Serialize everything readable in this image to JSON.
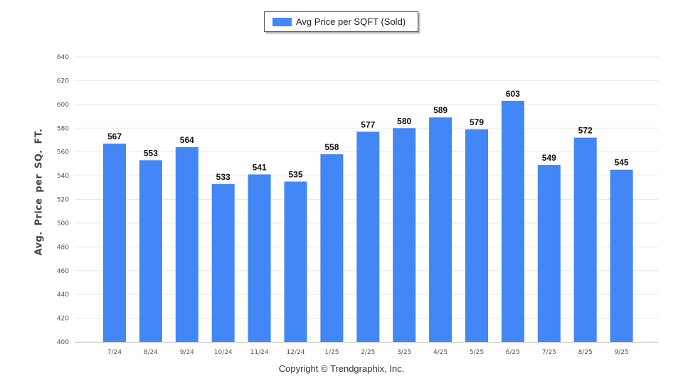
{
  "chart_data": {
    "type": "bar",
    "title": "",
    "xlabel": "",
    "ylabel": "Avg. Price per SQ. FT.",
    "legend": {
      "position": "top-center",
      "entries": [
        "Avg Price per SQFT (Sold)"
      ]
    },
    "categories": [
      "7/24",
      "8/24",
      "9/24",
      "10/24",
      "11/24",
      "12/24",
      "1/25",
      "2/25",
      "3/25",
      "4/25",
      "5/25",
      "6/25",
      "7/25",
      "8/25",
      "9/25"
    ],
    "series": [
      {
        "name": "Avg Price per SQFT (Sold)",
        "color": "#4287f5",
        "values": [
          567,
          553,
          564,
          533,
          541,
          535,
          558,
          577,
          580,
          589,
          579,
          603,
          549,
          572,
          545
        ]
      }
    ],
    "ylim": [
      400,
      640
    ],
    "yticks": [
      400,
      420,
      440,
      460,
      480,
      500,
      520,
      540,
      560,
      580,
      600,
      620,
      640
    ],
    "grid": true,
    "data_labels": true
  },
  "footer": {
    "copyright": "Copyright © Trendgraphix, Inc."
  }
}
